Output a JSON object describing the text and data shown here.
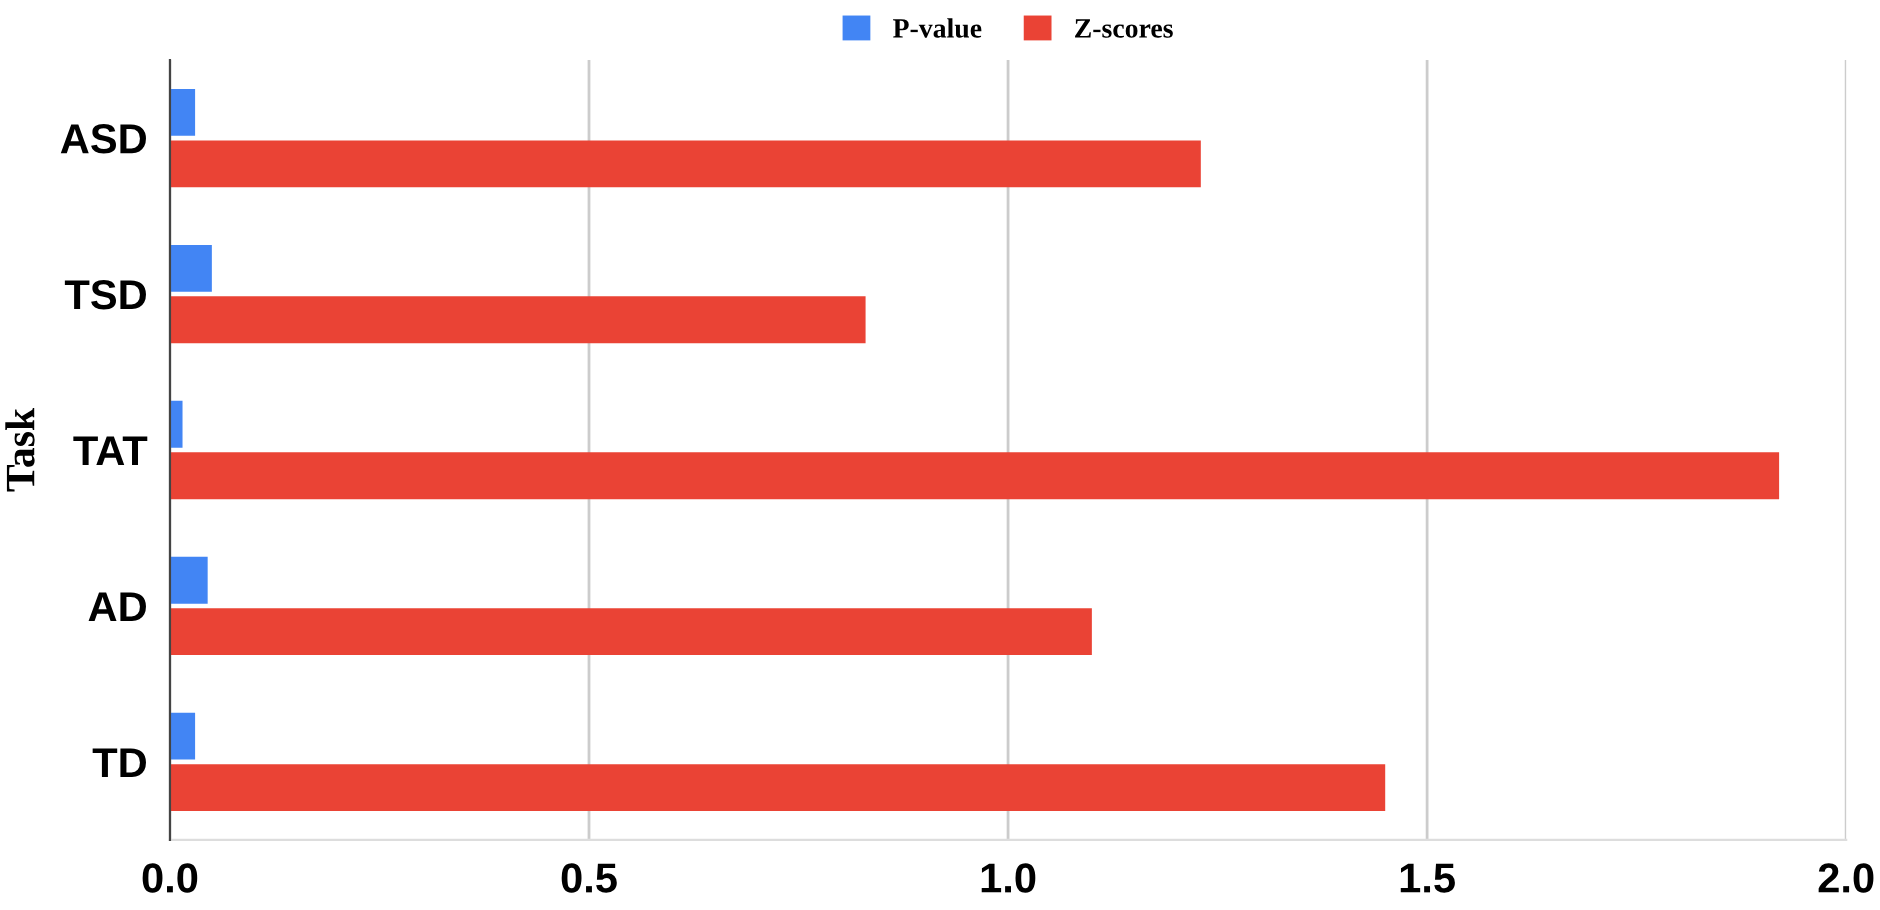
{
  "chart_data": {
    "type": "bar",
    "orientation": "horizontal",
    "ylabel": "Task",
    "categories": [
      "ASD",
      "TSD",
      "TAT",
      "AD",
      "TD"
    ],
    "series": [
      {
        "name": "P-value",
        "color": "#4285f4",
        "values": [
          0.03,
          0.05,
          0.015,
          0.045,
          0.03
        ]
      },
      {
        "name": "Z-scores",
        "color": "#ea4335",
        "values": [
          1.23,
          0.83,
          1.92,
          1.1,
          1.45
        ]
      }
    ],
    "xlim": [
      0,
      2.0
    ],
    "xticks": [
      {
        "value": 0,
        "label": "0.0"
      },
      0.5,
      {
        "value": 1,
        "label": "1.0"
      },
      1.5,
      {
        "value": 2,
        "label": "2.0"
      }
    ],
    "grid": "x",
    "legend": "top"
  }
}
